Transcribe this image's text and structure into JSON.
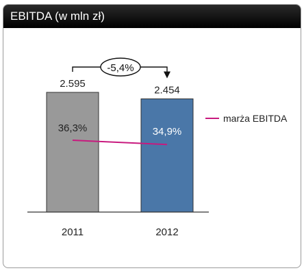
{
  "header": {
    "title": "EBITDA  (w mln zł)"
  },
  "chart_data": {
    "type": "bar",
    "title": "EBITDA  (w mln zł)",
    "categories": [
      "2011",
      "2012"
    ],
    "values": [
      2595,
      2454
    ],
    "value_labels": [
      "2.595",
      "2.454"
    ],
    "bar_colors": [
      "#999999",
      "#4a77a8"
    ],
    "change_label": "-5,4%",
    "line_series": {
      "name": "marża EBITDA",
      "values": [
        36.3,
        34.9
      ],
      "value_labels": [
        "36,3%",
        "34,9%"
      ],
      "color": "#c8197e"
    },
    "ylim": [
      0,
      2700
    ],
    "grid": false,
    "legend": "right"
  }
}
